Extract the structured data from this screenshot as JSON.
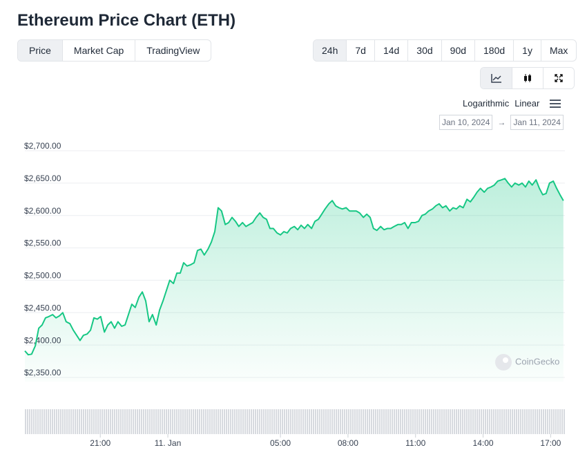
{
  "chart_data": {
    "type": "line",
    "title": "Ethereum Price Chart (ETH)",
    "x": [
      -381,
      -372,
      -363,
      -353,
      -344,
      -335,
      -326,
      -317,
      -307,
      -298,
      -289,
      -280,
      -271,
      -261,
      -252,
      -243,
      -234,
      -225,
      -215,
      -206,
      -197,
      -188,
      -179,
      -169,
      -160,
      -151,
      -142,
      -133,
      -123,
      -114,
      -105,
      -96,
      -87,
      -77,
      -68,
      -59,
      -50,
      -41,
      -31,
      -22,
      -13,
      -4,
      5,
      15,
      24,
      33,
      42,
      51,
      61,
      70,
      79,
      88,
      97,
      107,
      116,
      125,
      134,
      143,
      153,
      162,
      171,
      180,
      189,
      199,
      208,
      217,
      226,
      235,
      245,
      254,
      263,
      272,
      281,
      291,
      300,
      309,
      318,
      327,
      337,
      346,
      355,
      364,
      373,
      383,
      392,
      401,
      410,
      419,
      429,
      438,
      447,
      456,
      465,
      475,
      484,
      493,
      502,
      511,
      521,
      530,
      539,
      548,
      557,
      567,
      576,
      585,
      594,
      603,
      613,
      622,
      631,
      640,
      649,
      659,
      668,
      677,
      686,
      695,
      705,
      714,
      723,
      732,
      741,
      751,
      760,
      769,
      778,
      787,
      797,
      806,
      815,
      824,
      833,
      843,
      852,
      861,
      870,
      879,
      889,
      898,
      907,
      916,
      925,
      935,
      944,
      953,
      962,
      971,
      981,
      990,
      999,
      1008,
      1017,
      1027,
      1036,
      1045,
      1054
    ],
    "series": [
      {
        "name": "ETH",
        "color": "#16c784",
        "values": [
          2391,
          2385,
          2386,
          2399,
          2426,
          2431,
          2442,
          2444,
          2447,
          2442,
          2445,
          2450,
          2436,
          2433,
          2423,
          2415,
          2407,
          2415,
          2417,
          2423,
          2442,
          2440,
          2444,
          2420,
          2431,
          2436,
          2426,
          2436,
          2429,
          2431,
          2447,
          2463,
          2458,
          2474,
          2482,
          2468,
          2436,
          2447,
          2431,
          2454,
          2468,
          2484,
          2500,
          2495,
          2511,
          2511,
          2527,
          2522,
          2524,
          2527,
          2546,
          2548,
          2539,
          2548,
          2559,
          2575,
          2612,
          2607,
          2586,
          2589,
          2597,
          2591,
          2583,
          2589,
          2583,
          2586,
          2589,
          2597,
          2604,
          2597,
          2594,
          2580,
          2580,
          2573,
          2570,
          2575,
          2573,
          2580,
          2583,
          2578,
          2585,
          2580,
          2586,
          2580,
          2591,
          2594,
          2602,
          2610,
          2618,
          2623,
          2615,
          2612,
          2610,
          2612,
          2607,
          2607,
          2607,
          2604,
          2597,
          2602,
          2597,
          2580,
          2577,
          2583,
          2578,
          2580,
          2580,
          2583,
          2586,
          2586,
          2589,
          2580,
          2589,
          2589,
          2591,
          2600,
          2602,
          2607,
          2610,
          2615,
          2618,
          2612,
          2615,
          2607,
          2612,
          2610,
          2615,
          2612,
          2625,
          2621,
          2628,
          2636,
          2642,
          2636,
          2642,
          2644,
          2647,
          2653,
          2655,
          2657,
          2650,
          2644,
          2650,
          2647,
          2650,
          2644,
          2653,
          2647,
          2655,
          2642,
          2632,
          2634,
          2650,
          2653,
          2642,
          2632,
          2623
        ]
      }
    ],
    "xlim": [
      -381,
      1058
    ],
    "xticks": [
      {
        "value": -180,
        "label": "21:00"
      },
      {
        "value": 0,
        "label": "11. Jan"
      },
      {
        "value": 300,
        "label": "05:00"
      },
      {
        "value": 480,
        "label": "08:00"
      },
      {
        "value": 660,
        "label": "11:00"
      },
      {
        "value": 840,
        "label": "14:00"
      },
      {
        "value": 1020,
        "label": "17:00"
      }
    ],
    "ylim": [
      2350,
      2700
    ],
    "yticks": [
      {
        "value": 2350,
        "label": "$2,350.00"
      },
      {
        "value": 2400,
        "label": "$2,400.00"
      },
      {
        "value": 2450,
        "label": "$2,450.00"
      },
      {
        "value": 2500,
        "label": "$2,500.00"
      },
      {
        "value": 2550,
        "label": "$2,550.00"
      },
      {
        "value": 2600,
        "label": "$2,600.00"
      },
      {
        "value": 2650,
        "label": "$2,650.00"
      },
      {
        "value": 2700,
        "label": "$2,700.00"
      }
    ],
    "grid": true
  },
  "tabs": [
    "Price",
    "Market Cap",
    "TradingView"
  ],
  "ranges": [
    "24h",
    "7d",
    "14d",
    "30d",
    "90d",
    "180d",
    "1y",
    "Max"
  ],
  "scale_options": [
    "Logarithmic",
    "Linear"
  ],
  "date_range": {
    "from": "Jan 10, 2024",
    "arrow": "→",
    "to": "Jan 11, 2024"
  },
  "watermark": "CoinGecko"
}
